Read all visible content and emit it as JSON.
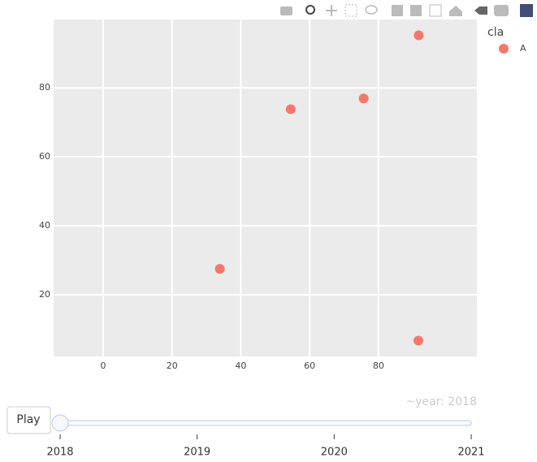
{
  "chart_data": {
    "type": "scatter",
    "x": [
      33.9,
      54.5,
      75.7,
      91.7,
      91.6
    ],
    "series": [
      {
        "name": "A",
        "color": "#f8766d",
        "values": [
          27.5,
          73.8,
          76.9,
          95.2,
          6.7
        ]
      }
    ],
    "legend_title": "cla",
    "xlim": [
      -14.4,
      108.6
    ],
    "xticks": [
      0,
      20,
      40,
      60,
      80
    ],
    "ylim": [
      2.1,
      99.8
    ],
    "yticks": [
      20,
      40,
      60,
      80
    ],
    "grid": true,
    "slider": {
      "prefix": "~year: ",
      "steps": [
        "2018",
        "2019",
        "2020",
        "2021"
      ],
      "active": 0,
      "button": "Play"
    }
  }
}
